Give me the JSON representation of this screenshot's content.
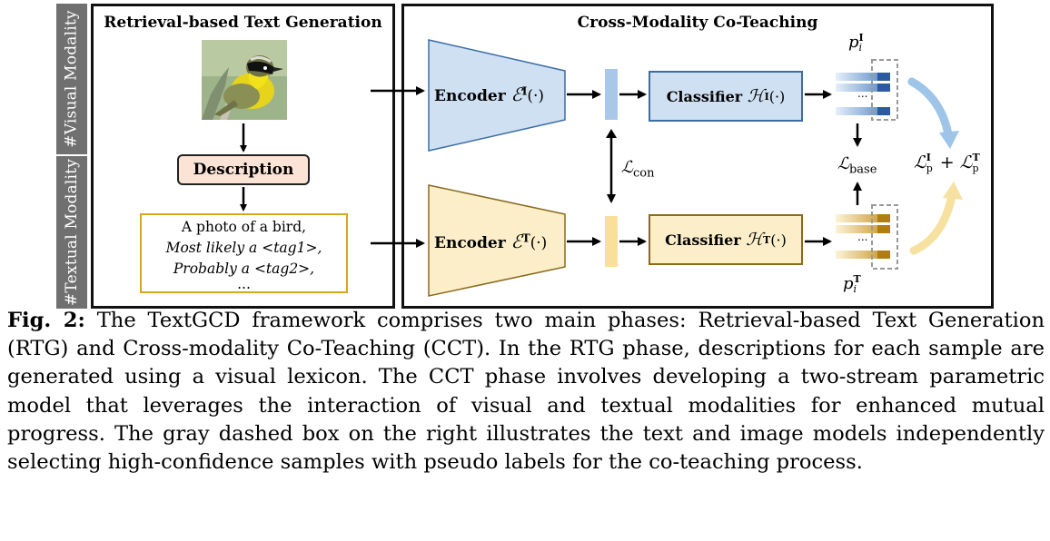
{
  "figure": {
    "modality_tabs": {
      "visual": "#Visual Modality",
      "textual": "#Textual Modality"
    },
    "rtg_panel": {
      "title": "Retrieval-based Text Generation",
      "description_label": "Description",
      "text_lines": [
        "A photo of a bird,",
        "Most likely a <tag1>,",
        "Probably a <tag2>,",
        "..."
      ]
    },
    "cct_panel": {
      "title": "Cross-Modality Co-Teaching",
      "encoder_image": {
        "label": "Encoder",
        "symbol": "ℰ",
        "superscript": "I",
        "arg": "(·)"
      },
      "encoder_text": {
        "label": "Encoder",
        "symbol": "ℰ",
        "superscript": "T",
        "arg": "(·)"
      },
      "classifier_image": {
        "label": "Classifier",
        "symbol": "ℋ",
        "superscript": "I",
        "arg": "(·)"
      },
      "classifier_text": {
        "label": "Classifier",
        "symbol": "ℋ",
        "superscript": "T",
        "arg": "(·)"
      },
      "loss_con": {
        "symbol": "ℒ",
        "subscript": "con"
      },
      "loss_base": {
        "symbol": "ℒ",
        "subscript": "base"
      },
      "loss_pseudo": {
        "symbol": "ℒ",
        "sub": "p",
        "sup_image": "I",
        "sup_text": "T",
        "plus": "+"
      },
      "p_image": {
        "symbol": "p",
        "sub": "i",
        "sup": "I"
      },
      "p_text": {
        "symbol": "p",
        "sub": "i",
        "sup": "T"
      },
      "ellipsis": "..."
    },
    "colors": {
      "visual_fill": "#cfe0f2",
      "visual_stroke": "#3a6ea5",
      "text_fill": "#fbeec9",
      "text_stroke": "#8a6a1e",
      "description_fill": "#fbe3d6",
      "tab_gray": "#707070"
    }
  },
  "caption": {
    "lead": "Fig. 2:",
    "body": "The TextGCD framework comprises two main phases: Retrieval-based Text Generation (RTG) and Cross-modality Co-Teaching (CCT). In the RTG phase, descriptions for each sample are generated using a visual lexicon. The CCT phase involves developing a two-stream parametric model that leverages the interaction of visual and textual modalities for enhanced mutual progress. The gray dashed box on the right illustrates the text and image models independently selecting high-confidence samples with pseudo labels for the co-teaching process."
  }
}
